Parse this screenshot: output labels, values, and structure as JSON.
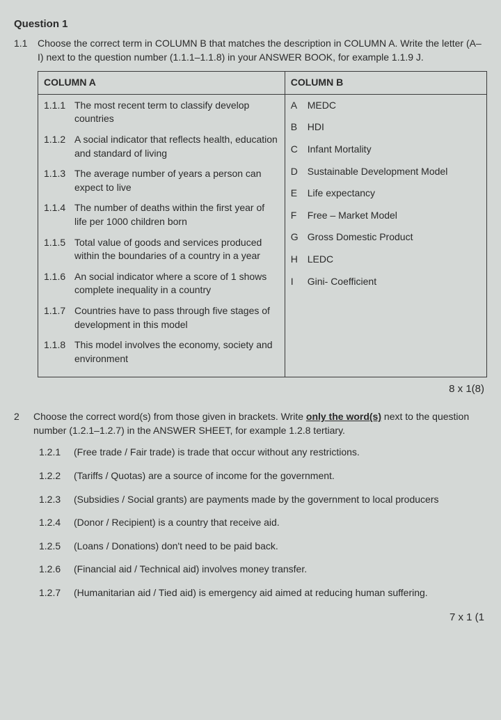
{
  "question_title": "Question 1",
  "q1_1": {
    "num": "1.1",
    "instruction": "Choose the correct term in COLUMN B that matches the description in COLUMN A. Write the letter (A–I) next to the question number (1.1.1–1.1.8) in your ANSWER BOOK, for example 1.1.9 J.",
    "colA_header": "COLUMN A",
    "colB_header": "COLUMN B",
    "colA": [
      {
        "n": "1.1.1",
        "t": "The most recent term to classify develop countries"
      },
      {
        "n": "1.1.2",
        "t": "A social indicator that reflects health, education and standard of living"
      },
      {
        "n": "1.1.3",
        "t": "The average number of years a person can expect to live"
      },
      {
        "n": "1.1.4",
        "t": "The number of deaths within the first year of life per 1000 children born"
      },
      {
        "n": "1.1.5",
        "t": "Total value of goods and services produced within the boundaries of a country in a year"
      },
      {
        "n": "1.1.6",
        "t": "An social indicator where a score of 1 shows complete inequality in a country"
      },
      {
        "n": "1.1.7",
        "t": "Countries have to pass through five stages of development in this model"
      },
      {
        "n": "1.1.8",
        "t": "This model involves the economy, society and environment"
      }
    ],
    "colB": [
      {
        "l": "A",
        "t": "MEDC"
      },
      {
        "l": "B",
        "t": "HDI"
      },
      {
        "l": "C",
        "t": "Infant Mortality"
      },
      {
        "l": "D",
        "t": "Sustainable Development Model"
      },
      {
        "l": "E",
        "t": "Life expectancy"
      },
      {
        "l": "F",
        "t": "Free – Market Model"
      },
      {
        "l": "G",
        "t": "Gross Domestic Product"
      },
      {
        "l": "H",
        "t": "LEDC"
      },
      {
        "l": "I",
        "t": "Gini- Coefficient"
      }
    ],
    "marks": "8 x 1(8)"
  },
  "q1_2": {
    "num": "2",
    "instr_pre": "Choose the correct word(s) from those given in brackets. Write ",
    "instr_underline": "only the word(s)",
    "instr_post": " next to the question number (1.2.1–1.2.7) in the ANSWER SHEET, for example 1.2.8 tertiary.",
    "items": [
      {
        "n": "1.2.1",
        "t": "(Free trade / Fair trade) is trade that occur without any restrictions."
      },
      {
        "n": "1.2.2",
        "t": "(Tariffs / Quotas) are a source of income for the government."
      },
      {
        "n": "1.2.3",
        "t": "(Subsidies / Social grants) are payments made by the government to local producers"
      },
      {
        "n": "1.2.4",
        "t": "(Donor / Recipient) is a country that receive aid."
      },
      {
        "n": "1.2.5",
        "t": "(Loans / Donations) don't need to be paid back."
      },
      {
        "n": "1.2.6",
        "t": "(Financial aid / Technical aid) involves money transfer."
      },
      {
        "n": "1.2.7",
        "t": "(Humanitarian aid / Tied aid) is emergency aid aimed at reducing human suffering."
      }
    ],
    "marks": "7 x 1 (1"
  }
}
